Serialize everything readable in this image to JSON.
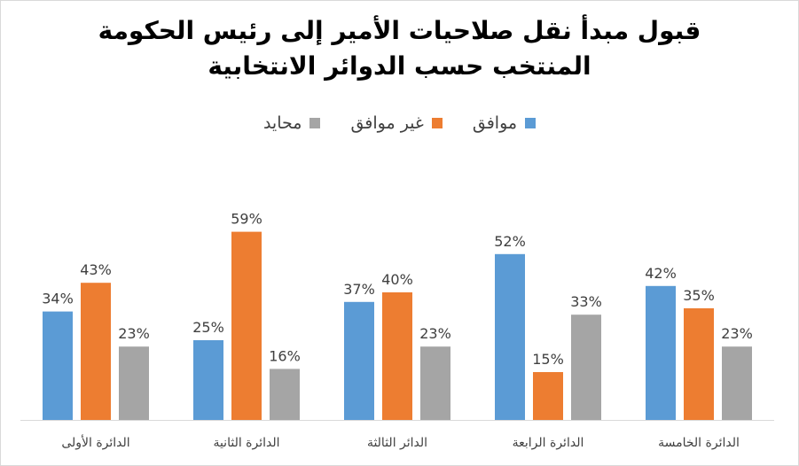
{
  "chart_data": {
    "type": "bar",
    "title_line1": "قبول مبدأ نقل صلاحيات الأمير إلى رئيس الحكومة",
    "title_line2": "المنتخب حسب الدوائر الانتخابية",
    "categories": [
      "الدائرة الأولى",
      "الدائرة الثانية",
      "الدائر الثالثة",
      "الدائرة الرابعة",
      "الدائرة الخامسة"
    ],
    "series": [
      {
        "name": "موافق",
        "color": "#5b9bd5",
        "values": [
          34,
          25,
          37,
          52,
          42
        ]
      },
      {
        "name": "غير موافق",
        "color": "#ed7d31",
        "values": [
          43,
          59,
          40,
          15,
          35
        ]
      },
      {
        "name": "محايد",
        "color": "#a5a5a5",
        "values": [
          23,
          16,
          23,
          33,
          23
        ]
      }
    ],
    "value_suffix": "%",
    "ylim": [
      0,
      70
    ],
    "grid": false,
    "legend_position": "top"
  }
}
